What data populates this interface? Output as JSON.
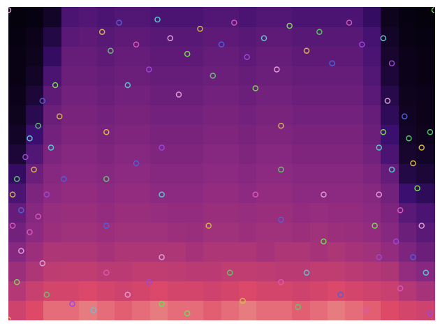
{
  "chart_data": {
    "type": "scatter",
    "xlim": [
      0,
      100
    ],
    "ylim": [
      0,
      100
    ],
    "tick_labels": false,
    "grid": false,
    "marker": "circle",
    "x": [
      1,
      2,
      3,
      1,
      4,
      5,
      3,
      2,
      6,
      7,
      8,
      5,
      9,
      10,
      8,
      11,
      12,
      9,
      13,
      7,
      99,
      98,
      97,
      96,
      95,
      94,
      93,
      92,
      91,
      90,
      89,
      88,
      97,
      99,
      95,
      92,
      90,
      88,
      87,
      86,
      22,
      24,
      26,
      30,
      33,
      35,
      38,
      42,
      45,
      48,
      50,
      53,
      56,
      60,
      63,
      66,
      70,
      73,
      76,
      80,
      83,
      28,
      40,
      58,
      23,
      23,
      23,
      23,
      36,
      36,
      36,
      36,
      64,
      64,
      64,
      64,
      87,
      87,
      74,
      74,
      47,
      52,
      30,
      58,
      15,
      20,
      28,
      42,
      55,
      68,
      78,
      84,
      33,
      70,
      0,
      100,
      0
    ],
    "values": [
      40,
      45,
      35,
      30,
      52,
      58,
      22,
      12,
      48,
      62,
      70,
      28,
      40,
      55,
      18,
      75,
      65,
      8,
      45,
      33,
      2,
      15,
      30,
      42,
      50,
      58,
      65,
      35,
      25,
      48,
      70,
      60,
      55,
      60,
      20,
      10,
      82,
      90,
      40,
      30,
      92,
      86,
      95,
      88,
      80,
      96,
      90,
      85,
      93,
      78,
      88,
      95,
      84,
      90,
      80,
      94,
      86,
      92,
      82,
      95,
      88,
      75,
      72,
      74,
      60,
      45,
      30,
      15,
      55,
      40,
      20,
      5,
      62,
      48,
      32,
      12,
      20,
      55,
      40,
      25,
      30,
      15,
      50,
      40,
      5,
      3,
      8,
      2,
      6,
      4,
      8,
      3,
      12,
      15,
      99,
      99,
      0
    ],
    "colors": [
      "#d4b84a",
      "#5cc86a",
      "#5060d8",
      "#d858b8",
      "#9a48d8",
      "#58c8d0",
      "#e0a0d8",
      "#7ad858",
      "#d4b84a",
      "#5cc86a",
      "#5060d8",
      "#d858b8",
      "#9a48d8",
      "#58c8d0",
      "#e0a0d8",
      "#7ad858",
      "#d4b84a",
      "#5cc86a",
      "#5060d8",
      "#d858b8",
      "#9a48d8",
      "#58c8d0",
      "#e0a0d8",
      "#7ad858",
      "#d4b84a",
      "#5cc86a",
      "#5060d8",
      "#d858b8",
      "#9a48d8",
      "#58c8d0",
      "#e0a0d8",
      "#7ad858",
      "#d4b84a",
      "#5cc86a",
      "#5060d8",
      "#d858b8",
      "#9a48d8",
      "#58c8d0",
      "#e0a0d8",
      "#7ad858",
      "#d4b84a",
      "#5cc86a",
      "#5060d8",
      "#d858b8",
      "#9a48d8",
      "#58c8d0",
      "#e0a0d8",
      "#7ad858",
      "#d4b84a",
      "#5cc86a",
      "#5060d8",
      "#d858b8",
      "#9a48d8",
      "#58c8d0",
      "#e0a0d8",
      "#7ad858",
      "#d4b84a",
      "#5cc86a",
      "#5060d8",
      "#d858b8",
      "#9a48d8",
      "#58c8d0",
      "#e0a0d8",
      "#7ad858",
      "#d4b84a",
      "#5cc86a",
      "#5060d8",
      "#d858b8",
      "#9a48d8",
      "#58c8d0",
      "#e0a0d8",
      "#7ad858",
      "#d4b84a",
      "#5cc86a",
      "#5060d8",
      "#d858b8",
      "#9a48d8",
      "#58c8d0",
      "#e0a0d8",
      "#7ad858",
      "#d4b84a",
      "#5cc86a",
      "#5060d8",
      "#d858b8",
      "#9a48d8",
      "#58c8d0",
      "#e0a0d8",
      "#7ad858",
      "#d4b84a",
      "#5cc86a",
      "#5060d8",
      "#d858b8",
      "#9a48d8",
      "#58c8d0",
      "#e0a0d8",
      "#7ad858",
      "#d4b84a"
    ],
    "zlim": [
      0,
      1
    ],
    "cells": [
      [
        0.7,
        0.75,
        0.8,
        0.8,
        0.82,
        0.8,
        0.78,
        0.8,
        0.82,
        0.8,
        0.8,
        0.78,
        0.8,
        0.82,
        0.8,
        0.8,
        0.78,
        0.8,
        0.82,
        0.8,
        0.78,
        0.75,
        0.72,
        0.7
      ],
      [
        0.62,
        0.68,
        0.72,
        0.72,
        0.74,
        0.72,
        0.7,
        0.72,
        0.74,
        0.72,
        0.72,
        0.7,
        0.72,
        0.74,
        0.72,
        0.72,
        0.7,
        0.72,
        0.74,
        0.72,
        0.7,
        0.68,
        0.62,
        0.58
      ],
      [
        0.55,
        0.6,
        0.65,
        0.66,
        0.66,
        0.64,
        0.64,
        0.66,
        0.66,
        0.65,
        0.64,
        0.64,
        0.66,
        0.66,
        0.65,
        0.64,
        0.64,
        0.66,
        0.66,
        0.64,
        0.62,
        0.6,
        0.52,
        0.48
      ],
      [
        0.48,
        0.55,
        0.6,
        0.6,
        0.6,
        0.58,
        0.6,
        0.6,
        0.6,
        0.6,
        0.58,
        0.6,
        0.6,
        0.6,
        0.58,
        0.6,
        0.6,
        0.58,
        0.6,
        0.58,
        0.56,
        0.52,
        0.45,
        0.4
      ],
      [
        0.42,
        0.5,
        0.55,
        0.56,
        0.56,
        0.55,
        0.56,
        0.56,
        0.56,
        0.55,
        0.54,
        0.56,
        0.56,
        0.55,
        0.56,
        0.56,
        0.55,
        0.56,
        0.55,
        0.54,
        0.52,
        0.48,
        0.4,
        0.35
      ],
      [
        0.38,
        0.48,
        0.53,
        0.54,
        0.54,
        0.52,
        0.54,
        0.54,
        0.53,
        0.52,
        0.52,
        0.54,
        0.54,
        0.53,
        0.54,
        0.54,
        0.52,
        0.53,
        0.52,
        0.52,
        0.5,
        0.45,
        0.35,
        0.3
      ],
      [
        0.3,
        0.45,
        0.5,
        0.52,
        0.52,
        0.5,
        0.52,
        0.52,
        0.5,
        0.5,
        0.5,
        0.52,
        0.52,
        0.5,
        0.52,
        0.52,
        0.5,
        0.5,
        0.5,
        0.5,
        0.48,
        0.42,
        0.25,
        0.2
      ],
      [
        0.22,
        0.4,
        0.48,
        0.5,
        0.5,
        0.48,
        0.5,
        0.5,
        0.48,
        0.48,
        0.48,
        0.5,
        0.5,
        0.48,
        0.5,
        0.5,
        0.48,
        0.48,
        0.48,
        0.48,
        0.45,
        0.38,
        0.15,
        0.12
      ],
      [
        0.12,
        0.32,
        0.45,
        0.48,
        0.48,
        0.46,
        0.48,
        0.48,
        0.46,
        0.46,
        0.46,
        0.48,
        0.48,
        0.46,
        0.48,
        0.48,
        0.46,
        0.46,
        0.46,
        0.46,
        0.42,
        0.3,
        0.1,
        0.08
      ],
      [
        0.08,
        0.25,
        0.42,
        0.46,
        0.46,
        0.44,
        0.46,
        0.46,
        0.44,
        0.44,
        0.44,
        0.46,
        0.46,
        0.44,
        0.46,
        0.46,
        0.44,
        0.44,
        0.44,
        0.44,
        0.4,
        0.25,
        0.08,
        0.06
      ],
      [
        0.06,
        0.18,
        0.4,
        0.44,
        0.44,
        0.42,
        0.44,
        0.44,
        0.42,
        0.42,
        0.42,
        0.44,
        0.44,
        0.42,
        0.44,
        0.44,
        0.42,
        0.42,
        0.42,
        0.42,
        0.38,
        0.2,
        0.07,
        0.05
      ],
      [
        0.05,
        0.12,
        0.36,
        0.42,
        0.42,
        0.4,
        0.42,
        0.42,
        0.4,
        0.4,
        0.4,
        0.42,
        0.42,
        0.4,
        0.42,
        0.42,
        0.4,
        0.4,
        0.4,
        0.4,
        0.35,
        0.16,
        0.06,
        0.05
      ],
      [
        0.04,
        0.08,
        0.3,
        0.4,
        0.4,
        0.38,
        0.4,
        0.4,
        0.38,
        0.38,
        0.38,
        0.4,
        0.4,
        0.38,
        0.4,
        0.4,
        0.38,
        0.38,
        0.38,
        0.38,
        0.32,
        0.12,
        0.05,
        0.04
      ],
      [
        0.04,
        0.06,
        0.22,
        0.38,
        0.38,
        0.36,
        0.38,
        0.38,
        0.36,
        0.36,
        0.36,
        0.38,
        0.38,
        0.36,
        0.38,
        0.38,
        0.36,
        0.36,
        0.36,
        0.36,
        0.3,
        0.1,
        0.05,
        0.04
      ],
      [
        0.03,
        0.05,
        0.15,
        0.35,
        0.36,
        0.34,
        0.36,
        0.36,
        0.34,
        0.34,
        0.34,
        0.36,
        0.36,
        0.34,
        0.36,
        0.36,
        0.34,
        0.34,
        0.34,
        0.34,
        0.28,
        0.08,
        0.04,
        0.03
      ],
      [
        0.02,
        0.03,
        0.08,
        0.3,
        0.32,
        0.3,
        0.32,
        0.32,
        0.3,
        0.3,
        0.3,
        0.32,
        0.32,
        0.3,
        0.32,
        0.32,
        0.3,
        0.3,
        0.3,
        0.3,
        0.22,
        0.06,
        0.03,
        0.02
      ]
    ]
  }
}
